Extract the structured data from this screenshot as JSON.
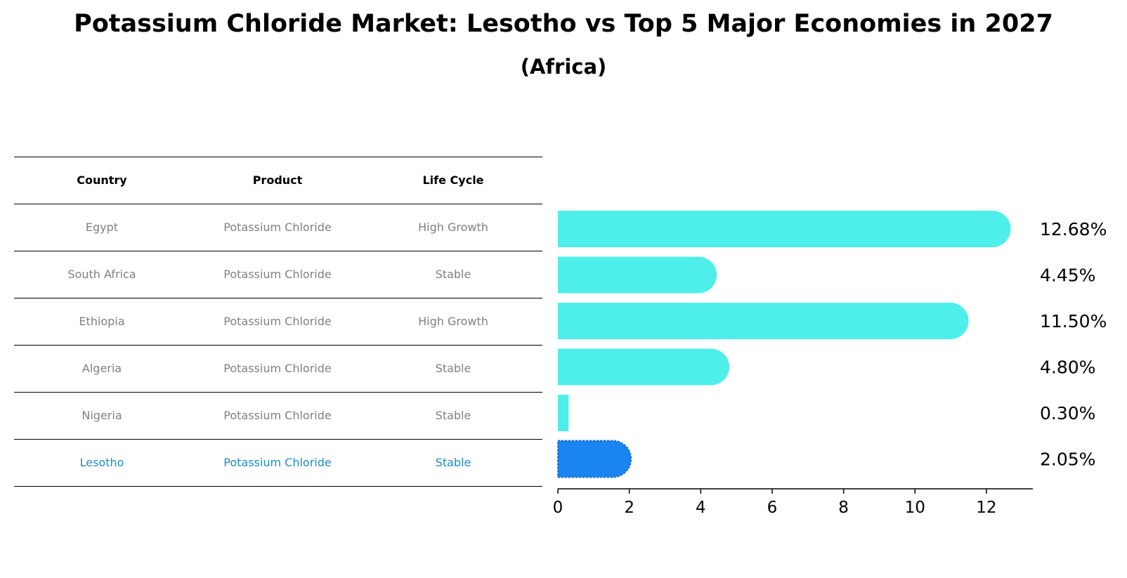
{
  "title": "Potassium Chloride Market: Lesotho vs Top 5 Major Economies in 2027",
  "subtitle": "(Africa)",
  "colors": {
    "bar": "#4eeeea",
    "highlight_bar": "#1a84f0",
    "highlight_text": "#1a8ccc",
    "muted_text": "#808080"
  },
  "table": {
    "headers": [
      "Country",
      "Product",
      "Life Cycle"
    ],
    "rows": [
      [
        "Egypt",
        "Potassium Chloride",
        "High Growth"
      ],
      [
        "South Africa",
        "Potassium Chloride",
        "Stable"
      ],
      [
        "Ethiopia",
        "Potassium Chloride",
        "High Growth"
      ],
      [
        "Algeria",
        "Potassium Chloride",
        "Stable"
      ],
      [
        "Nigeria",
        "Potassium Chloride",
        "Stable"
      ],
      [
        "Lesotho",
        "Potassium Chloride",
        "Stable"
      ]
    ],
    "highlight_row": 5
  },
  "chart_data": {
    "type": "bar",
    "orientation": "horizontal",
    "categories": [
      "Egypt",
      "South Africa",
      "Ethiopia",
      "Algeria",
      "Nigeria",
      "Lesotho"
    ],
    "values": [
      12.68,
      4.45,
      11.5,
      4.8,
      0.3,
      2.05
    ],
    "value_labels": [
      "12.68%",
      "4.45%",
      "11.50%",
      "4.80%",
      "0.30%",
      "2.05%"
    ],
    "highlight": "Lesotho",
    "xlim": [
      0,
      13.3
    ],
    "xticks": [
      0,
      2,
      4,
      6,
      8,
      10,
      12
    ],
    "grid": false
  }
}
